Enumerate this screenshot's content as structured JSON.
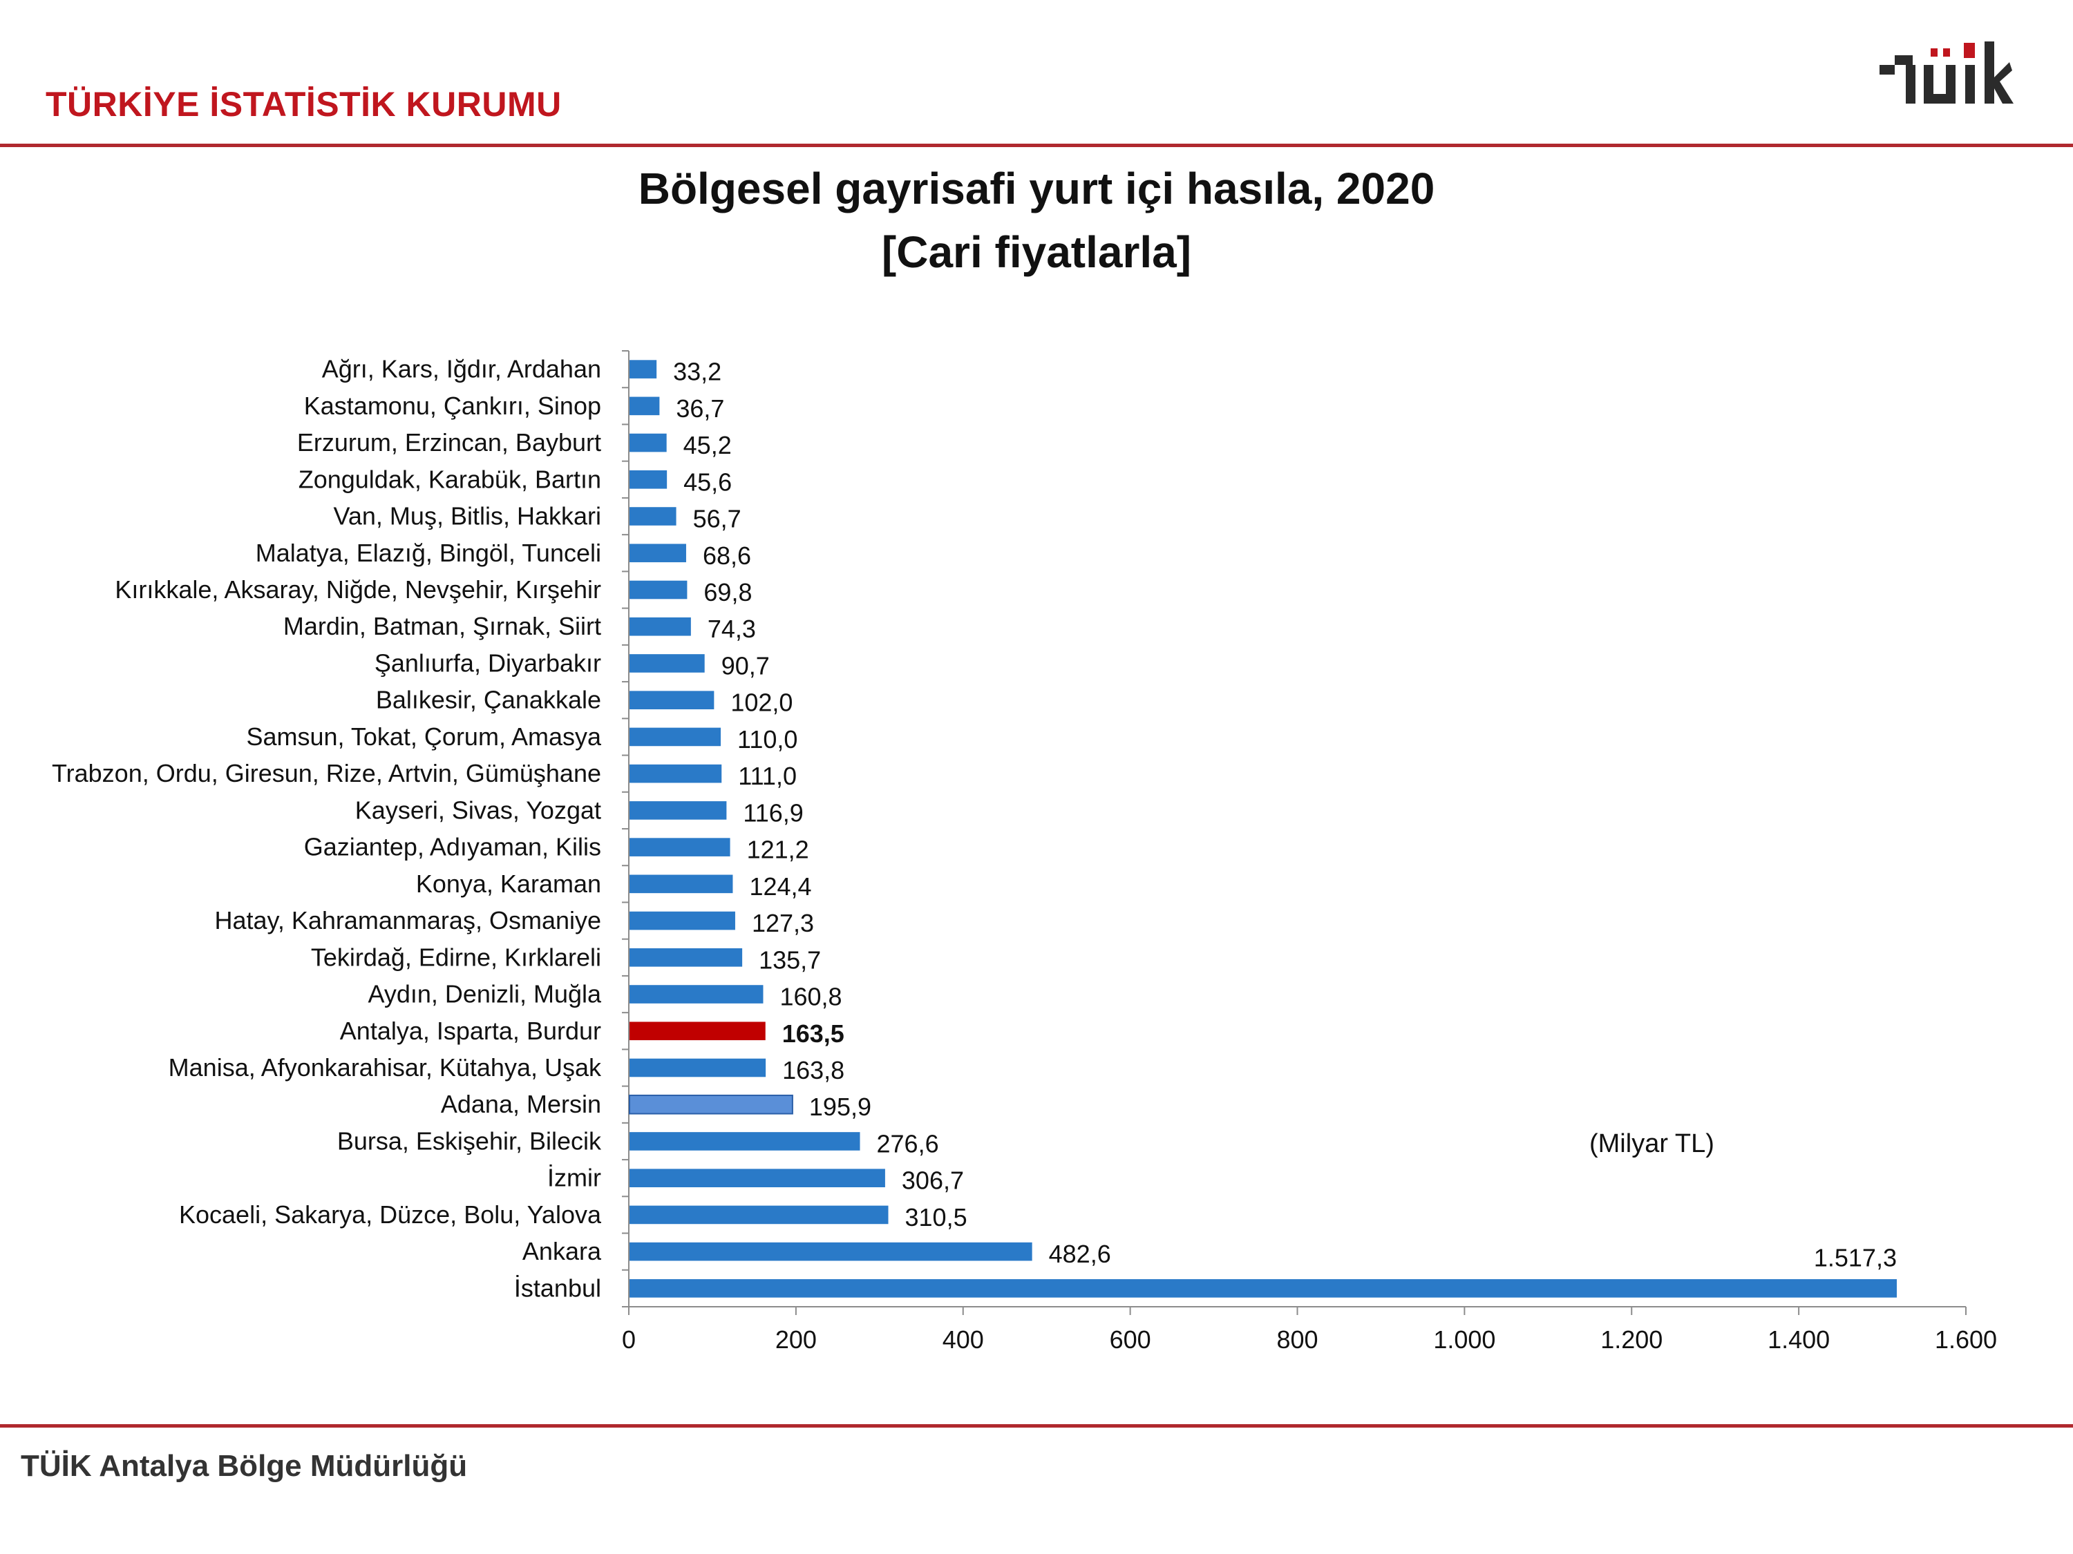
{
  "header": {
    "org_name": "TÜRKİYE İSTATİSTİK KURUMU",
    "logo_text": "TÜİK"
  },
  "colors": {
    "brand_red": "#c0161e",
    "bar_default": "#2a7ac8",
    "bar_highlight": "#c00000",
    "bar_secondary": "#5a8fd8"
  },
  "chart_data": {
    "type": "bar",
    "orientation": "horizontal",
    "title": "Bölgesel gayrisafi yurt içi hasıla, 2020",
    "subtitle": "[Cari fiyatlarla]",
    "unit_label": "(Milyar TL)",
    "xlim": [
      0,
      1600
    ],
    "x_ticks": [
      "0",
      "200",
      "400",
      "600",
      "800",
      "1.000",
      "1.200",
      "1.400",
      "1.600"
    ],
    "x_tick_values": [
      0,
      200,
      400,
      600,
      800,
      1000,
      1200,
      1400,
      1600
    ],
    "grid": false,
    "categories": [
      "Ağrı, Kars, Iğdır, Ardahan",
      "Kastamonu, Çankırı, Sinop",
      "Erzurum, Erzincan, Bayburt",
      "Zonguldak, Karabük, Bartın",
      "Van, Muş, Bitlis, Hakkari",
      "Malatya, Elazığ, Bingöl, Tunceli",
      "Kırıkkale, Aksaray, Niğde, Nevşehir, Kırşehir",
      "Mardin, Batman, Şırnak, Siirt",
      "Şanlıurfa, Diyarbakır",
      "Balıkesir, Çanakkale",
      "Samsun, Tokat, Çorum, Amasya",
      "Trabzon, Ordu, Giresun, Rize, Artvin, Gümüşhane",
      "Kayseri, Sivas, Yozgat",
      "Gaziantep, Adıyaman, Kilis",
      "Konya, Karaman",
      "Hatay, Kahramanmaraş, Osmaniye",
      "Tekirdağ, Edirne, Kırklareli",
      "Aydın, Denizli, Muğla",
      "Antalya, Isparta, Burdur",
      "Manisa, Afyonkarahisar, Kütahya, Uşak",
      "Adana, Mersin",
      "Bursa, Eskişehir, Bilecik",
      "İzmir",
      "Kocaeli, Sakarya, Düzce, Bolu, Yalova",
      "Ankara",
      "İstanbul"
    ],
    "values": [
      33.2,
      36.7,
      45.2,
      45.6,
      56.7,
      68.6,
      69.8,
      74.3,
      90.7,
      102.0,
      110.0,
      111.0,
      116.9,
      121.2,
      124.4,
      127.3,
      135.7,
      160.8,
      163.5,
      163.8,
      195.9,
      276.6,
      306.7,
      310.5,
      482.6,
      1517.3
    ],
    "value_labels": [
      "33,2",
      "36,7",
      "45,2",
      "45,6",
      "56,7",
      "68,6",
      "69,8",
      "74,3",
      "90,7",
      "102,0",
      "110,0",
      "111,0",
      "116,9",
      "121,2",
      "124,4",
      "127,3",
      "135,7",
      "160,8",
      "163,5",
      "163,8",
      "195,9",
      "276,6",
      "306,7",
      "310,5",
      "482,6",
      "1.517,3"
    ],
    "highlight": {
      "Antalya, Isparta, Burdur": "bar_highlight",
      "Adana, Mersin": "bar_secondary"
    }
  },
  "footer": {
    "text": "TÜİK Antalya Bölge Müdürlüğü"
  }
}
